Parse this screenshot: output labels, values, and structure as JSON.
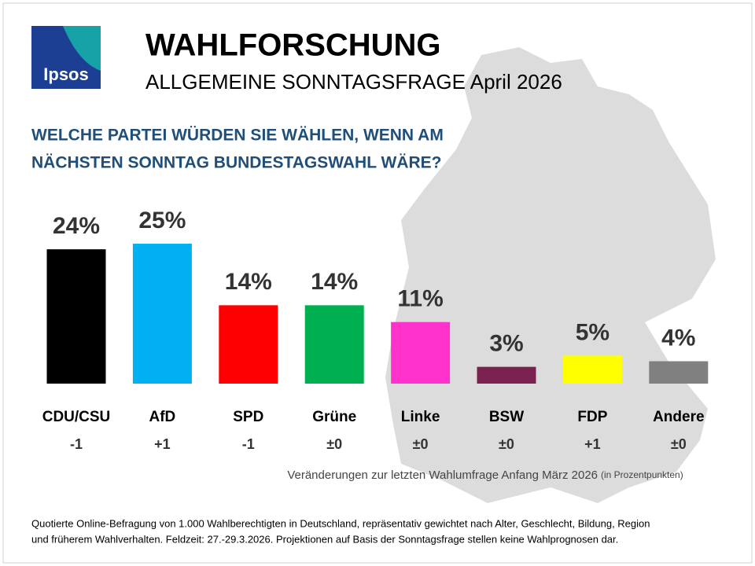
{
  "logo": "Ipsos",
  "chart_data": {
    "type": "bar",
    "title": "WAHLFORSCHUNG",
    "subtitle": "ALLGEMEINE SONNTAGSFRAGE April 2026",
    "question": [
      "WELCHE PARTEI WÜRDEN SIE WÄHLEN, WENN AM",
      "NÄCHSTEN SONNTAG BUNDESTAGSWAHL WÄRE?"
    ],
    "categories": [
      "CDU/CSU",
      "AfD",
      "SPD",
      "Grüne",
      "Linke",
      "BSW",
      "FDP",
      "Andere"
    ],
    "values": [
      24,
      25,
      14,
      14,
      11,
      3,
      5,
      4
    ],
    "value_labels": [
      "24%",
      "25%",
      "14%",
      "14%",
      "11%",
      "3%",
      "5%",
      "4%"
    ],
    "colors": [
      "#000000",
      "#00b0f0",
      "#ff0000",
      "#00b050",
      "#ff33cc",
      "#7b2150",
      "#ffff00",
      "#808080"
    ],
    "changes": [
      "-1",
      "+1",
      "-1",
      "±0",
      "±0",
      "±0",
      "+1",
      "±0"
    ],
    "note": "Veränderungen zur letzten Wahlumfrage Anfang März 2026",
    "note_unit": "(in Prozentpunkten)",
    "footnote": [
      "Quotierte Online-Befragung von 1.000 Wahlberechtigten in Deutschland, repräsentativ gewichtet nach Alter, Geschlecht, Bildung, Region",
      "und früherem Wahlverhalten. Feldzeit: 27.-29.3.2026. Projektionen auf Basis der Sonntagsfrage stellen keine Wahlprognosen dar."
    ]
  }
}
